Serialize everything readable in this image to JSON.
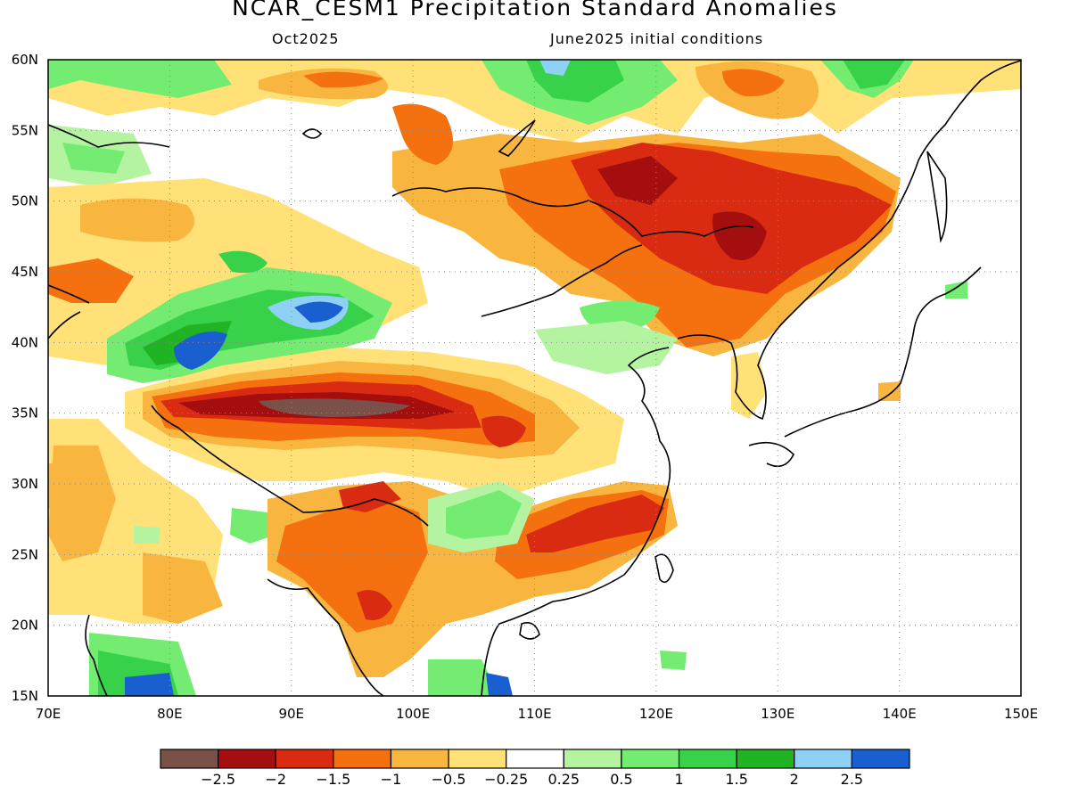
{
  "header": {
    "title": "NCAR_CESM1 Precipitation Standard Anomalies",
    "subtitle_left": "Oct2025",
    "subtitle_right": "June2025 initial conditions"
  },
  "map": {
    "lon_range": [
      70,
      150
    ],
    "lat_range": [
      15,
      60
    ],
    "lon_labels": [
      "70E",
      "80E",
      "90E",
      "100E",
      "110E",
      "120E",
      "130E",
      "140E",
      "150E"
    ],
    "lat_labels": [
      "60N",
      "55N",
      "50N",
      "45N",
      "40N",
      "35N",
      "30N",
      "25N",
      "20N",
      "15N"
    ],
    "grid": "dotted"
  },
  "legend": {
    "labels": [
      "−2.5",
      "−2",
      "−1.5",
      "−1",
      "−0.5",
      "−0.25",
      "0.25",
      "0.5",
      "1",
      "1.5",
      "2",
      "2.5"
    ],
    "colors": [
      "#7a5148",
      "#a50e0e",
      "#d92b12",
      "#f5700f",
      "#f8b640",
      "#ffe178",
      "#ffffff",
      "#b4f4a0",
      "#74eb71",
      "#37d14a",
      "#20b424",
      "#8fd0f5",
      "#1a5fd0"
    ]
  }
}
